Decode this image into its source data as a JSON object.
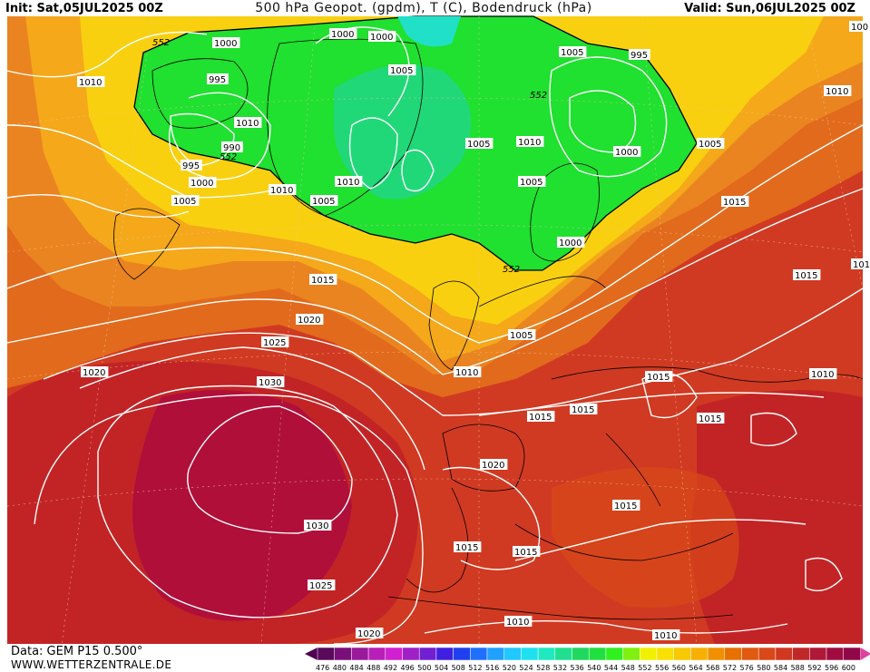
{
  "header": {
    "init": "Init: Sat,05JUL2025 00Z",
    "title": "500 hPa Geopot. (gpdm), T (C), Bodendruck (hPa)",
    "valid": "Valid: Sun,06JUL2025 00Z"
  },
  "footer": {
    "source": "Data: GEM P15 0.500°",
    "site": "WWW.WETTERZENTRALE.DE"
  },
  "colorbar": {
    "labels": [
      "476",
      "480",
      "484",
      "488",
      "492",
      "496",
      "500",
      "504",
      "508",
      "512",
      "516",
      "520",
      "524",
      "528",
      "532",
      "536",
      "540",
      "544",
      "548",
      "552",
      "556",
      "560",
      "564",
      "568",
      "572",
      "576",
      "580",
      "584",
      "588",
      "592",
      "596",
      "600"
    ],
    "colors": [
      "#5a0a5a",
      "#7a0f7a",
      "#9a1a9a",
      "#b81fb8",
      "#d020d0",
      "#a020c8",
      "#7020d0",
      "#4020e0",
      "#2040f0",
      "#2070ff",
      "#20a0ff",
      "#20c8ff",
      "#20e0f0",
      "#20e8c0",
      "#20e090",
      "#20d860",
      "#20e040",
      "#30f020",
      "#80f010",
      "#f0f000",
      "#f8e000",
      "#f8c800",
      "#f8b000",
      "#f09000",
      "#e87000",
      "#e05a10",
      "#d84818",
      "#d03820",
      "#c02828",
      "#b01838",
      "#a00c40",
      "#900848"
    ],
    "arrow_left_color": "#500050",
    "arrow_right_color": "#e040a0"
  },
  "map": {
    "colors": {
      "bg_orange": "#e26a1c",
      "red_dark": "#c22426",
      "red_mid": "#d03a22",
      "crimson": "#b00f3a",
      "orange": "#ea8420",
      "orange_light": "#f4a81a",
      "yellow": "#f8d010",
      "yellow_green": "#d8ec10",
      "green": "#20e030",
      "green_teal": "#20d878"
    },
    "contour_552_labels": [
      {
        "text": "552"
      },
      {
        "text": "552"
      },
      {
        "text": "552"
      },
      {
        "text": "552"
      }
    ],
    "isobar_labels": [
      {
        "text": "1000"
      },
      {
        "text": "1000"
      },
      {
        "text": "1000"
      },
      {
        "text": "1005"
      },
      {
        "text": "995"
      },
      {
        "text": "1005"
      },
      {
        "text": "995"
      },
      {
        "text": "1010"
      },
      {
        "text": "1010"
      },
      {
        "text": "1010"
      },
      {
        "text": "990"
      },
      {
        "text": "995"
      },
      {
        "text": "1000"
      },
      {
        "text": "1010"
      },
      {
        "text": "1005"
      },
      {
        "text": "1005"
      },
      {
        "text": "1010"
      },
      {
        "text": "1005"
      },
      {
        "text": "1000"
      },
      {
        "text": "1000"
      },
      {
        "text": "1005"
      },
      {
        "text": "1010"
      },
      {
        "text": "1015"
      },
      {
        "text": "1015"
      },
      {
        "text": "1015"
      },
      {
        "text": "1020"
      },
      {
        "text": "1025"
      },
      {
        "text": "1020"
      },
      {
        "text": "1030"
      },
      {
        "text": "1005"
      },
      {
        "text": "1010"
      },
      {
        "text": "1015"
      },
      {
        "text": "1015"
      },
      {
        "text": "1015"
      },
      {
        "text": "1010"
      },
      {
        "text": "1015"
      },
      {
        "text": "1020"
      },
      {
        "text": "1030"
      },
      {
        "text": "1015"
      },
      {
        "text": "1015"
      },
      {
        "text": "1015"
      },
      {
        "text": "1025"
      },
      {
        "text": "1010"
      },
      {
        "text": "1020"
      },
      {
        "text": "1010"
      },
      {
        "text": "1005"
      },
      {
        "text": "101"
      },
      {
        "text": "100"
      }
    ]
  }
}
